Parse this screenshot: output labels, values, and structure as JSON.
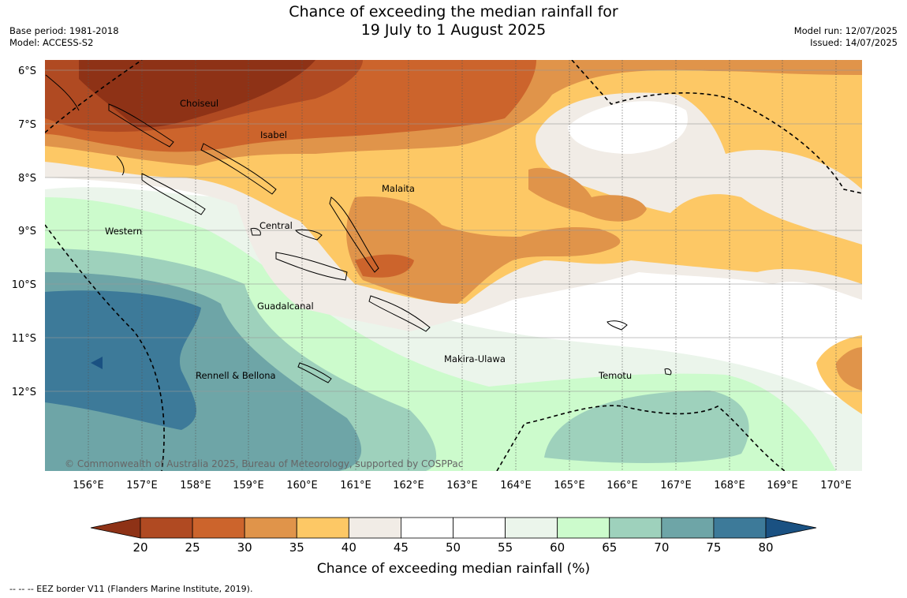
{
  "title_line1": "Chance of exceeding the median rainfall for",
  "title_line2": "19 July to 1 August 2025",
  "base_period": "Base period: 1981-2018",
  "model": "Model: ACCESS-S2",
  "model_run": "Model run: 12/07/2025",
  "issued": "Issued: 14/07/2025",
  "lat_labels": [
    "6°S",
    "7°S",
    "8°S",
    "9°S",
    "10°S",
    "11°S",
    "12°S"
  ],
  "lon_labels": [
    "156°E",
    "157°E",
    "158°E",
    "159°E",
    "160°E",
    "161°E",
    "162°E",
    "163°E",
    "164°E",
    "165°E",
    "166°E",
    "167°E",
    "168°E",
    "169°E",
    "170°E"
  ],
  "regions": [
    {
      "name": "Choiseul"
    },
    {
      "name": "Isabel"
    },
    {
      "name": "Malaita"
    },
    {
      "name": "Central"
    },
    {
      "name": "Western"
    },
    {
      "name": "Guadalcanal"
    },
    {
      "name": "Makira-Ulawa"
    },
    {
      "name": "Rennell & Bellona"
    },
    {
      "name": "Temotu"
    }
  ],
  "copyright": "© Commonwealth of Australia 2025, Bureau of Meteorology, supported by COSPPac",
  "colorbar": {
    "title": "Chance of exceeding median rainfall (%)",
    "ticks": [
      "20",
      "25",
      "30",
      "35",
      "40",
      "45",
      "50",
      "55",
      "60",
      "65",
      "70",
      "75",
      "80"
    ],
    "colors": [
      "#8e3216",
      "#b04a22",
      "#cc642c",
      "#e0944a",
      "#fdc865",
      "#f1ece6",
      "#ffffff",
      "#ffffff",
      "#ebf5eb",
      "#ccfbcc",
      "#9ed1bc",
      "#6ea5a7",
      "#3d7a99",
      "#1a5182"
    ]
  },
  "footnote": "--  --  -- EEZ border V11 (Flanders Marine Institute, 2019)."
}
